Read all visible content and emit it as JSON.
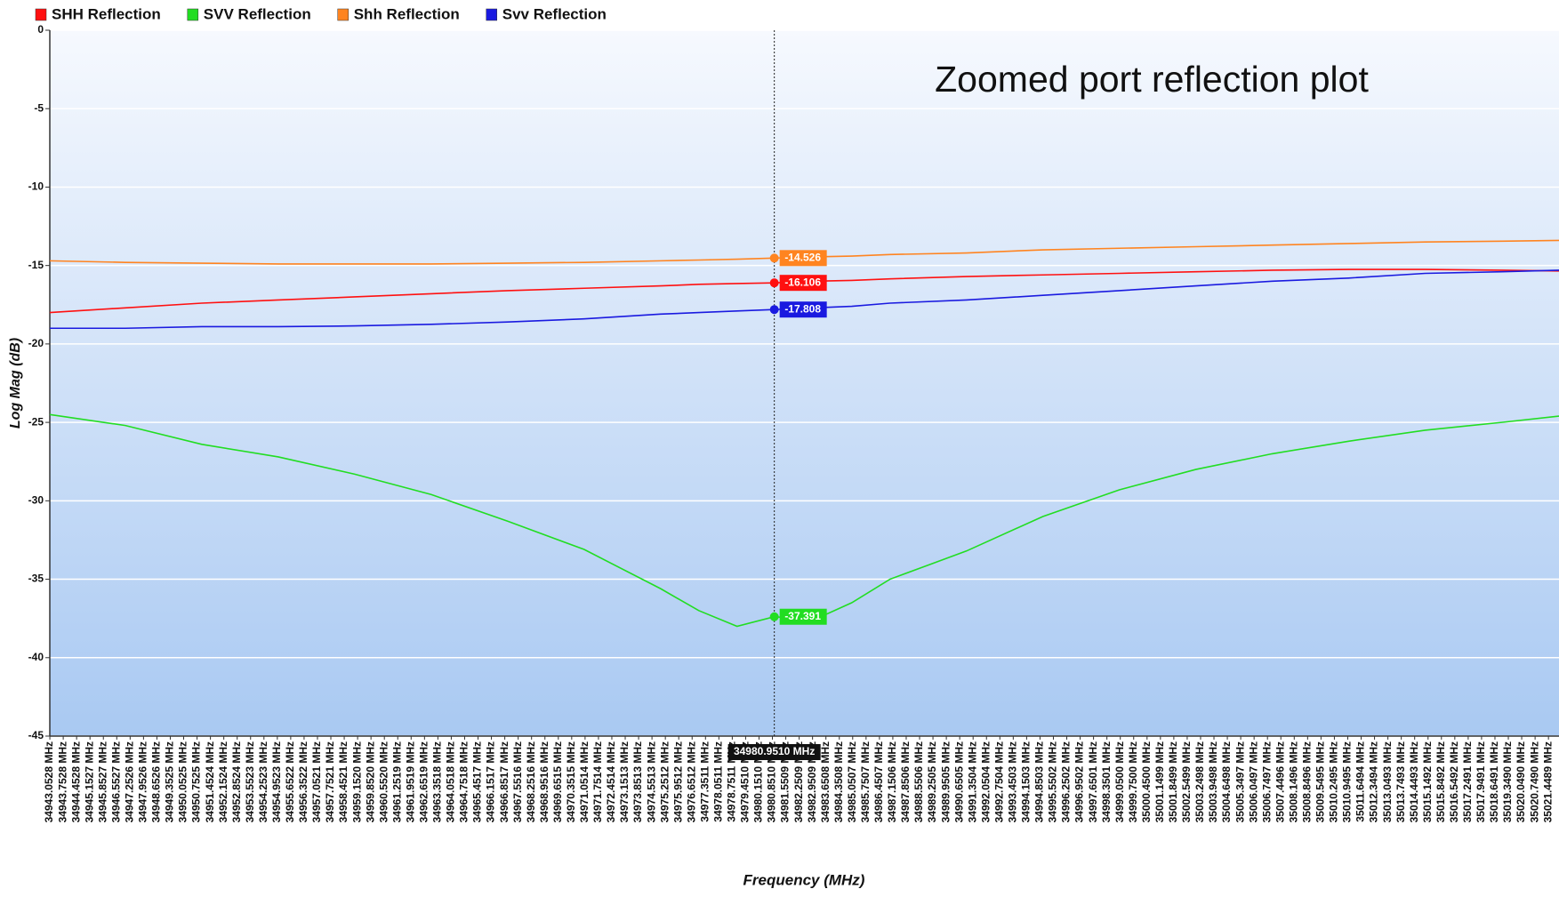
{
  "chart_data": {
    "type": "line",
    "annotation": "Zoomed port reflection plot",
    "y_label": "Log Mag (dB)",
    "x_label": "Frequency (MHz)",
    "legend": "top-left",
    "grid": true,
    "ylim": [
      -45,
      0
    ],
    "yticks": [
      0,
      -5,
      -10,
      -15,
      -20,
      -25,
      -30,
      -35,
      -40,
      -45
    ],
    "xlim": [
      34943.05,
      35022.0
    ],
    "xticks": [
      {
        "value": 34943.0528,
        "label": "34943.0528 MHz"
      },
      {
        "value": 34943.7528,
        "label": "34943.7528 MHz"
      },
      {
        "value": 34944.4528,
        "label": "34944.4528 MHz"
      },
      {
        "value": 34945.1527,
        "label": "34945.1527 MHz"
      },
      {
        "value": 34945.8527,
        "label": "34945.8527 MHz"
      },
      {
        "value": 34946.5527,
        "label": "34946.5527 MHz"
      },
      {
        "value": 34947.2526,
        "label": "34947.2526 MHz"
      },
      {
        "value": 34947.9526,
        "label": "34947.9526 MHz"
      },
      {
        "value": 34948.6526,
        "label": "34948.6526 MHz"
      },
      {
        "value": 34949.3525,
        "label": "34949.3525 MHz"
      },
      {
        "value": 34950.0525,
        "label": "34950.0525 MHz"
      },
      {
        "value": 34950.7525,
        "label": "34950.7525 MHz"
      },
      {
        "value": 34951.4524,
        "label": "34951.4524 MHz"
      },
      {
        "value": 34952.1524,
        "label": "34952.1524 MHz"
      },
      {
        "value": 34952.8524,
        "label": "34952.8524 MHz"
      },
      {
        "value": 34953.5523,
        "label": "34953.5523 MHz"
      },
      {
        "value": 34954.2523,
        "label": "34954.2523 MHz"
      },
      {
        "value": 34954.9523,
        "label": "34954.9523 MHz"
      },
      {
        "value": 34955.6522,
        "label": "34955.6522 MHz"
      },
      {
        "value": 34956.3522,
        "label": "34956.3522 MHz"
      },
      {
        "value": 34957.0521,
        "label": "34957.0521 MHz"
      },
      {
        "value": 34957.7521,
        "label": "34957.7521 MHz"
      },
      {
        "value": 34958.4521,
        "label": "34958.4521 MHz"
      },
      {
        "value": 34959.152,
        "label": "34959.1520 MHz"
      },
      {
        "value": 34959.852,
        "label": "34959.8520 MHz"
      },
      {
        "value": 34960.552,
        "label": "34960.5520 MHz"
      },
      {
        "value": 34961.2519,
        "label": "34961.2519 MHz"
      },
      {
        "value": 34961.9519,
        "label": "34961.9519 MHz"
      },
      {
        "value": 34962.6519,
        "label": "34962.6519 MHz"
      },
      {
        "value": 34963.3518,
        "label": "34963.3518 MHz"
      },
      {
        "value": 34964.0518,
        "label": "34964.0518 MHz"
      },
      {
        "value": 34964.7518,
        "label": "34964.7518 MHz"
      },
      {
        "value": 34965.4517,
        "label": "34965.4517 MHz"
      },
      {
        "value": 34966.1517,
        "label": "34966.1517 MHz"
      },
      {
        "value": 34966.8517,
        "label": "34966.8517 MHz"
      },
      {
        "value": 34967.5516,
        "label": "34967.5516 MHz"
      },
      {
        "value": 34968.2516,
        "label": "34968.2516 MHz"
      },
      {
        "value": 34968.9516,
        "label": "34968.9516 MHz"
      },
      {
        "value": 34969.6515,
        "label": "34969.6515 MHz"
      },
      {
        "value": 34970.3515,
        "label": "34970.3515 MHz"
      },
      {
        "value": 34971.0514,
        "label": "34971.0514 MHz"
      },
      {
        "value": 34971.7514,
        "label": "34971.7514 MHz"
      },
      {
        "value": 34972.4514,
        "label": "34972.4514 MHz"
      },
      {
        "value": 34973.1513,
        "label": "34973.1513 MHz"
      },
      {
        "value": 34973.8513,
        "label": "34973.8513 MHz"
      },
      {
        "value": 34974.5513,
        "label": "34974.5513 MHz"
      },
      {
        "value": 34975.2512,
        "label": "34975.2512 MHz"
      },
      {
        "value": 34975.9512,
        "label": "34975.9512 MHz"
      },
      {
        "value": 34976.6512,
        "label": "34976.6512 MHz"
      },
      {
        "value": 34977.3511,
        "label": "34977.3511 MHz"
      },
      {
        "value": 34978.0511,
        "label": "34978.0511 MHz"
      },
      {
        "value": 34978.7511,
        "label": "34978.7511 MHz"
      },
      {
        "value": 34979.451,
        "label": "34979.4510 MHz"
      },
      {
        "value": 34980.151,
        "label": "34980.1510 MHz"
      },
      {
        "value": 34980.851,
        "label": "34980.8510 MHz"
      },
      {
        "value": 34981.5509,
        "label": "34981.5509 MHz"
      },
      {
        "value": 34982.2509,
        "label": "34982.2509 MHz"
      },
      {
        "value": 34982.9509,
        "label": "34982.9509 MHz"
      },
      {
        "value": 34983.6508,
        "label": "34983.6508 MHz"
      },
      {
        "value": 34984.3508,
        "label": "34984.3508 MHz"
      },
      {
        "value": 34985.0507,
        "label": "34985.0507 MHz"
      },
      {
        "value": 34985.7507,
        "label": "34985.7507 MHz"
      },
      {
        "value": 34986.4507,
        "label": "34986.4507 MHz"
      },
      {
        "value": 34987.1506,
        "label": "34987.1506 MHz"
      },
      {
        "value": 34987.8506,
        "label": "34987.8506 MHz"
      },
      {
        "value": 34988.5506,
        "label": "34988.5506 MHz"
      },
      {
        "value": 34989.2505,
        "label": "34989.2505 MHz"
      },
      {
        "value": 34989.9505,
        "label": "34989.9505 MHz"
      },
      {
        "value": 34990.6505,
        "label": "34990.6505 MHz"
      },
      {
        "value": 34991.3504,
        "label": "34991.3504 MHz"
      },
      {
        "value": 34992.0504,
        "label": "34992.0504 MHz"
      },
      {
        "value": 34992.7504,
        "label": "34992.7504 MHz"
      },
      {
        "value": 34993.4503,
        "label": "34993.4503 MHz"
      },
      {
        "value": 34994.1503,
        "label": "34994.1503 MHz"
      },
      {
        "value": 34994.8503,
        "label": "34994.8503 MHz"
      },
      {
        "value": 34995.5502,
        "label": "34995.5502 MHz"
      },
      {
        "value": 34996.2502,
        "label": "34996.2502 MHz"
      },
      {
        "value": 34996.9502,
        "label": "34996.9502 MHz"
      },
      {
        "value": 34997.6501,
        "label": "34997.6501 MHz"
      },
      {
        "value": 34998.3501,
        "label": "34998.3501 MHz"
      },
      {
        "value": 34999.05,
        "label": "34999.0500 MHz"
      },
      {
        "value": 34999.75,
        "label": "34999.7500 MHz"
      },
      {
        "value": 35000.45,
        "label": "35000.4500 MHz"
      },
      {
        "value": 35001.1499,
        "label": "35001.1499 MHz"
      },
      {
        "value": 35001.8499,
        "label": "35001.8499 MHz"
      },
      {
        "value": 35002.5499,
        "label": "35002.5499 MHz"
      },
      {
        "value": 35003.2498,
        "label": "35003.2498 MHz"
      },
      {
        "value": 35003.9498,
        "label": "35003.9498 MHz"
      },
      {
        "value": 35004.6498,
        "label": "35004.6498 MHz"
      },
      {
        "value": 35005.3497,
        "label": "35005.3497 MHz"
      },
      {
        "value": 35006.0497,
        "label": "35006.0497 MHz"
      },
      {
        "value": 35006.7497,
        "label": "35006.7497 MHz"
      },
      {
        "value": 35007.4496,
        "label": "35007.4496 MHz"
      },
      {
        "value": 35008.1496,
        "label": "35008.1496 MHz"
      },
      {
        "value": 35008.8496,
        "label": "35008.8496 MHz"
      },
      {
        "value": 35009.5495,
        "label": "35009.5495 MHz"
      },
      {
        "value": 35010.2495,
        "label": "35010.2495 MHz"
      },
      {
        "value": 35010.9495,
        "label": "35010.9495 MHz"
      },
      {
        "value": 35011.6494,
        "label": "35011.6494 MHz"
      },
      {
        "value": 35012.3494,
        "label": "35012.3494 MHz"
      },
      {
        "value": 35013.0493,
        "label": "35013.0493 MHz"
      },
      {
        "value": 35013.7493,
        "label": "35013.7493 MHz"
      },
      {
        "value": 35014.4493,
        "label": "35014.4493 MHz"
      },
      {
        "value": 35015.1492,
        "label": "35015.1492 MHz"
      },
      {
        "value": 35015.8492,
        "label": "35015.8492 MHz"
      },
      {
        "value": 35016.5492,
        "label": "35016.5492 MHz"
      },
      {
        "value": 35017.2491,
        "label": "35017.2491 MHz"
      },
      {
        "value": 35017.9491,
        "label": "35017.9491 MHz"
      },
      {
        "value": 35018.6491,
        "label": "35018.6491 MHz"
      },
      {
        "value": 35019.349,
        "label": "35019.3490 MHz"
      },
      {
        "value": 35020.049,
        "label": "35020.0490 MHz"
      },
      {
        "value": 35020.749,
        "label": "35020.7490 MHz"
      },
      {
        "value": 35021.4489,
        "label": "35021.4489 MHz"
      }
    ],
    "cursor": {
      "x": 34980.951,
      "label": "34980.9510 MHz"
    },
    "x": [
      34943.05,
      34947,
      34951,
      34955,
      34959,
      34963,
      34967,
      34971,
      34975,
      34977,
      34979,
      34980.951,
      34983,
      34985,
      34987,
      34991,
      34995,
      34999,
      35003,
      35007,
      35011,
      35015,
      35019,
      35022
    ],
    "series": [
      {
        "name": "SHH Reflection",
        "color": "#ff1010",
        "marker": -16.106,
        "values": [
          -18.0,
          -17.7,
          -17.4,
          -17.2,
          -17.0,
          -16.8,
          -16.6,
          -16.45,
          -16.3,
          -16.2,
          -16.15,
          -16.106,
          -16.0,
          -15.95,
          -15.85,
          -15.7,
          -15.6,
          -15.5,
          -15.4,
          -15.3,
          -15.25,
          -15.25,
          -15.3,
          -15.35
        ]
      },
      {
        "name": "SVV Reflection",
        "color": "#22dd22",
        "marker": -37.391,
        "values": [
          -24.5,
          -25.2,
          -26.4,
          -27.2,
          -28.3,
          -29.6,
          -31.3,
          -33.1,
          -35.6,
          -37.0,
          -38.0,
          -37.391,
          -37.6,
          -36.5,
          -35.0,
          -33.2,
          -31.0,
          -29.3,
          -28.0,
          -27.0,
          -26.2,
          -25.5,
          -25.0,
          -24.6
        ]
      },
      {
        "name": "Shh Reflection",
        "color": "#ff8420",
        "marker": -14.526,
        "values": [
          -14.7,
          -14.8,
          -14.85,
          -14.9,
          -14.9,
          -14.9,
          -14.85,
          -14.8,
          -14.7,
          -14.65,
          -14.6,
          -14.526,
          -14.45,
          -14.4,
          -14.3,
          -14.2,
          -14.0,
          -13.9,
          -13.8,
          -13.7,
          -13.6,
          -13.5,
          -13.45,
          -13.4
        ]
      },
      {
        "name": "Svv Reflection",
        "color": "#1a1ae0",
        "marker": -17.808,
        "values": [
          -19.0,
          -19.0,
          -18.9,
          -18.9,
          -18.85,
          -18.75,
          -18.6,
          -18.4,
          -18.1,
          -18.0,
          -17.9,
          -17.808,
          -17.7,
          -17.6,
          -17.4,
          -17.2,
          -16.9,
          -16.6,
          -16.3,
          -16.0,
          -15.8,
          -15.5,
          -15.4,
          -15.3
        ]
      }
    ]
  }
}
